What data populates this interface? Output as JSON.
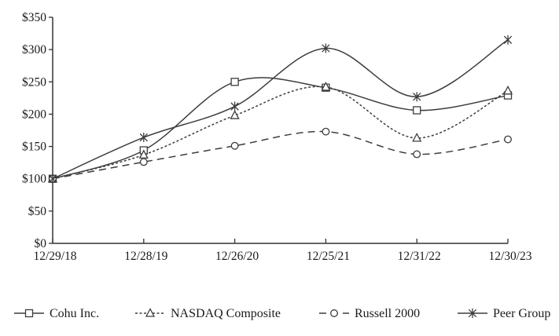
{
  "chart_data": {
    "type": "line",
    "title": "",
    "x_categories": [
      "12/29/18",
      "12/28/19",
      "12/26/20",
      "12/25/21",
      "12/31/22",
      "12/30/23"
    ],
    "y_tick_labels": [
      "$0",
      "$50",
      "$100",
      "$150",
      "$200",
      "$250",
      "$300",
      "$350"
    ],
    "ylim": [
      0,
      350
    ],
    "y_tick_step": 50,
    "grid": false,
    "smoothed_lines": true,
    "legend_position": "bottom",
    "line_color": "#3d3d3d",
    "axis_color": "#333333",
    "text_color": "#1a1a1a",
    "series": [
      {
        "name": "Cohu Inc.",
        "marker": "square",
        "line_style": "solid",
        "values": [
          100,
          144,
          250,
          241,
          206,
          229
        ]
      },
      {
        "name": "NASDAQ Composite",
        "marker": "triangle",
        "line_style": "dotted",
        "values": [
          100,
          137,
          198,
          242,
          163,
          236
        ]
      },
      {
        "name": "Russell 2000",
        "marker": "circle",
        "line_style": "dashed",
        "values": [
          100,
          126,
          151,
          173,
          138,
          161
        ]
      },
      {
        "name": "Peer Group",
        "marker": "asterisk",
        "line_style": "solid",
        "values": [
          100,
          164,
          212,
          302,
          227,
          315
        ]
      }
    ]
  }
}
